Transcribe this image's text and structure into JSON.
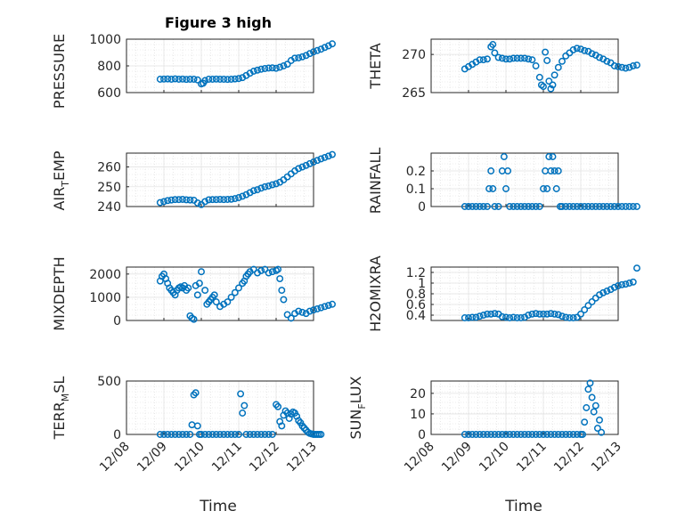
{
  "figure": {
    "title": "Figure 3 high",
    "marker_color": "#0072BD",
    "time_ticks": [
      "12/08",
      "12/09",
      "12/10",
      "12/11",
      "12/12",
      "12/13"
    ]
  },
  "chart_data": [
    {
      "type": "scatter",
      "name": "pressure",
      "title": "Figure 3 high",
      "xlabel": "",
      "ylabel": "PRESSURE",
      "ylim": [
        600,
        1000
      ],
      "yticks": [
        "600",
        "800",
        "1000"
      ],
      "grid": true,
      "x": [
        0.9,
        1.0,
        1.1,
        1.2,
        1.3,
        1.4,
        1.5,
        1.6,
        1.7,
        1.8,
        1.9,
        2.0,
        2.05,
        2.1,
        2.2,
        2.3,
        2.4,
        2.5,
        2.6,
        2.7,
        2.8,
        2.9,
        3.0,
        3.1,
        3.2,
        3.3,
        3.4,
        3.5,
        3.6,
        3.7,
        3.8,
        3.9,
        4.0,
        4.1,
        4.2,
        4.3,
        4.4,
        4.5,
        4.6,
        4.7,
        4.8,
        4.9,
        5.0,
        5.1,
        5.2,
        5.3,
        5.4,
        5.5
      ],
      "y": [
        700,
        701,
        702,
        700,
        703,
        700,
        701,
        699,
        700,
        700,
        695,
        665,
        670,
        690,
        700,
        700,
        701,
        700,
        700,
        699,
        700,
        702,
        705,
        712,
        728,
        745,
        760,
        768,
        775,
        780,
        784,
        785,
        782,
        790,
        800,
        812,
        840,
        858,
        860,
        868,
        878,
        892,
        905,
        915,
        925,
        938,
        950,
        965
      ]
    },
    {
      "type": "scatter",
      "name": "theta",
      "xlabel": "",
      "ylabel": "THETA",
      "ylim": [
        265,
        272
      ],
      "yticks": [
        "265",
        "270"
      ],
      "grid": true,
      "x": [
        0.9,
        1.0,
        1.1,
        1.2,
        1.3,
        1.4,
        1.5,
        1.6,
        1.65,
        1.7,
        1.8,
        1.9,
        2.0,
        2.1,
        2.2,
        2.3,
        2.4,
        2.5,
        2.6,
        2.7,
        2.8,
        2.9,
        2.95,
        3.0,
        3.05,
        3.1,
        3.15,
        3.2,
        3.25,
        3.3,
        3.4,
        3.5,
        3.6,
        3.7,
        3.8,
        3.9,
        4.0,
        4.1,
        4.2,
        4.3,
        4.4,
        4.5,
        4.6,
        4.7,
        4.8,
        4.9,
        5.0,
        5.1,
        5.2,
        5.3,
        5.4,
        5.5
      ],
      "y": [
        268.1,
        268.4,
        268.7,
        269.0,
        269.3,
        269.3,
        269.4,
        271.0,
        271.3,
        270.2,
        269.6,
        269.5,
        269.4,
        269.4,
        269.5,
        269.5,
        269.5,
        269.5,
        269.4,
        269.3,
        268.5,
        267.0,
        266.0,
        265.8,
        270.3,
        269.2,
        266.5,
        265.5,
        266.0,
        267.3,
        268.3,
        269.1,
        269.8,
        270.2,
        270.6,
        270.8,
        270.7,
        270.5,
        270.4,
        270.1,
        269.9,
        269.6,
        269.4,
        269.1,
        268.9,
        268.5,
        268.4,
        268.3,
        268.2,
        268.3,
        268.5,
        268.6
      ]
    },
    {
      "type": "scatter",
      "name": "air_temp",
      "xlabel": "",
      "ylabel": "AIR_TEMP",
      "ylim": [
        240,
        267
      ],
      "yticks": [
        "240",
        "250",
        "260"
      ],
      "grid": true,
      "x": [
        0.9,
        1.0,
        1.1,
        1.2,
        1.3,
        1.4,
        1.5,
        1.6,
        1.7,
        1.8,
        1.9,
        2.0,
        2.1,
        2.2,
        2.3,
        2.4,
        2.5,
        2.6,
        2.7,
        2.8,
        2.9,
        3.0,
        3.1,
        3.2,
        3.3,
        3.4,
        3.5,
        3.6,
        3.7,
        3.8,
        3.9,
        4.0,
        4.1,
        4.2,
        4.3,
        4.4,
        4.5,
        4.6,
        4.7,
        4.8,
        4.9,
        5.0,
        5.1,
        5.2,
        5.3,
        5.4,
        5.5
      ],
      "y": [
        242,
        242.5,
        243,
        243.3,
        243.5,
        243.5,
        243.6,
        243.4,
        243.3,
        243.2,
        241.8,
        241,
        242.5,
        243.4,
        243.5,
        243.5,
        243.6,
        243.5,
        243.6,
        243.7,
        244,
        244.5,
        245.2,
        246,
        247,
        248,
        248.5,
        249.3,
        250,
        250.4,
        251,
        251.5,
        252.3,
        253.5,
        255,
        256.5,
        258,
        259.2,
        260,
        260.8,
        261.7,
        262.5,
        263.3,
        264.1,
        264.8,
        265.5,
        266.3
      ]
    },
    {
      "type": "scatter",
      "name": "rainfall",
      "xlabel": "",
      "ylabel": "RAINFALL",
      "ylim": [
        0,
        0.3
      ],
      "yticks": [
        "0",
        "0.1",
        "0.2"
      ],
      "grid": true,
      "x": [
        0.9,
        1.0,
        1.1,
        1.2,
        1.3,
        1.4,
        1.5,
        1.55,
        1.6,
        1.65,
        1.7,
        1.8,
        1.9,
        1.95,
        2.0,
        2.05,
        2.1,
        2.2,
        2.3,
        2.4,
        2.5,
        2.6,
        2.7,
        2.8,
        2.9,
        3.0,
        3.05,
        3.1,
        3.15,
        3.2,
        3.25,
        3.3,
        3.35,
        3.4,
        3.45,
        3.5,
        3.6,
        3.7,
        3.8,
        3.9,
        4.0,
        4.1,
        4.2,
        4.3,
        4.4,
        4.5,
        4.6,
        4.7,
        4.8,
        4.9,
        5.0,
        5.1,
        5.2,
        5.3,
        5.4,
        5.5
      ],
      "y": [
        0,
        0,
        0,
        0,
        0,
        0,
        0,
        0.1,
        0.2,
        0.1,
        0,
        0,
        0.2,
        0.28,
        0.1,
        0.2,
        0,
        0,
        0,
        0,
        0,
        0,
        0,
        0,
        0,
        0.1,
        0.2,
        0.1,
        0.28,
        0.2,
        0.28,
        0.2,
        0.1,
        0.2,
        0,
        0,
        0,
        0,
        0,
        0,
        0,
        0,
        0,
        0,
        0,
        0,
        0,
        0,
        0,
        0,
        0,
        0,
        0,
        0,
        0,
        0
      ]
    },
    {
      "type": "scatter",
      "name": "mixdepth",
      "xlabel": "",
      "ylabel": "MIXDEPTH",
      "ylim": [
        0,
        2300
      ],
      "yticks": [
        "0",
        "1000",
        "2000"
      ],
      "grid": true,
      "x": [
        0.9,
        0.95,
        1.0,
        1.05,
        1.1,
        1.15,
        1.2,
        1.25,
        1.3,
        1.35,
        1.4,
        1.45,
        1.5,
        1.55,
        1.6,
        1.65,
        1.7,
        1.75,
        1.8,
        1.85,
        1.9,
        1.95,
        2.0,
        2.1,
        2.15,
        2.2,
        2.25,
        2.3,
        2.35,
        2.4,
        2.5,
        2.6,
        2.7,
        2.8,
        2.9,
        3.0,
        3.1,
        3.15,
        3.2,
        3.25,
        3.3,
        3.4,
        3.5,
        3.6,
        3.7,
        3.8,
        3.9,
        4.0,
        4.05,
        4.1,
        4.15,
        4.2,
        4.3,
        4.4,
        4.5,
        4.6,
        4.7,
        4.8,
        4.9,
        5.0,
        5.1,
        5.2,
        5.3,
        5.4,
        5.5
      ],
      "y": [
        1700,
        1900,
        2000,
        1800,
        1600,
        1400,
        1300,
        1200,
        1100,
        1300,
        1400,
        1450,
        1400,
        1500,
        1300,
        1400,
        200,
        100,
        50,
        1500,
        1100,
        1600,
        2100,
        1300,
        700,
        800,
        900,
        1000,
        1100,
        800,
        600,
        700,
        800,
        1000,
        1200,
        1400,
        1600,
        1700,
        1900,
        2000,
        2100,
        2200,
        2050,
        2150,
        2200,
        2050,
        2100,
        2150,
        2200,
        1800,
        1300,
        900,
        250,
        100,
        300,
        400,
        350,
        300,
        400,
        450,
        500,
        550,
        600,
        650,
        700
      ]
    },
    {
      "type": "scatter",
      "name": "h2omixra",
      "xlabel": "",
      "ylabel": "H2OMIXRA",
      "ylim": [
        0.3,
        1.3
      ],
      "yticks": [
        "0.4",
        "0.6",
        "0.8",
        "1",
        "1.2"
      ],
      "grid": true,
      "x": [
        0.9,
        1.0,
        1.1,
        1.2,
        1.3,
        1.4,
        1.5,
        1.6,
        1.7,
        1.8,
        1.9,
        2.0,
        2.1,
        2.2,
        2.3,
        2.4,
        2.5,
        2.6,
        2.7,
        2.8,
        2.9,
        3.0,
        3.1,
        3.2,
        3.3,
        3.4,
        3.5,
        3.6,
        3.7,
        3.8,
        3.9,
        4.0,
        4.1,
        4.2,
        4.3,
        4.4,
        4.5,
        4.6,
        4.7,
        4.8,
        4.9,
        5.0,
        5.1,
        5.2,
        5.3,
        5.4,
        5.5
      ],
      "y": [
        0.35,
        0.35,
        0.36,
        0.36,
        0.38,
        0.4,
        0.42,
        0.42,
        0.43,
        0.42,
        0.37,
        0.36,
        0.35,
        0.36,
        0.35,
        0.35,
        0.36,
        0.4,
        0.42,
        0.43,
        0.42,
        0.42,
        0.42,
        0.43,
        0.42,
        0.41,
        0.38,
        0.36,
        0.35,
        0.35,
        0.36,
        0.42,
        0.5,
        0.58,
        0.65,
        0.72,
        0.78,
        0.82,
        0.85,
        0.88,
        0.92,
        0.95,
        0.97,
        0.98,
        1.0,
        1.02,
        1.28
      ]
    },
    {
      "type": "scatter",
      "name": "terr_msl",
      "xlabel": "Time",
      "ylabel": "TERR_MSL",
      "ylim": [
        0,
        500
      ],
      "yticks": [
        "0",
        "500"
      ],
      "grid": true,
      "xticks": [
        "12/08",
        "12/09",
        "12/10",
        "12/11",
        "12/12",
        "12/13"
      ],
      "x": [
        0.9,
        1.0,
        1.1,
        1.2,
        1.3,
        1.4,
        1.5,
        1.6,
        1.7,
        1.75,
        1.8,
        1.85,
        1.9,
        1.95,
        2.0,
        2.1,
        2.2,
        2.3,
        2.4,
        2.5,
        2.6,
        2.7,
        2.8,
        2.9,
        3.0,
        3.05,
        3.1,
        3.15,
        3.2,
        3.3,
        3.4,
        3.5,
        3.6,
        3.7,
        3.8,
        3.9,
        4.0,
        4.05,
        4.1,
        4.15,
        4.2,
        4.25,
        4.3,
        4.35,
        4.4,
        4.45,
        4.5,
        4.55,
        4.6,
        4.65,
        4.7,
        4.75,
        4.8,
        4.85,
        4.9,
        4.95,
        5.0,
        5.05,
        5.1,
        5.15,
        5.2
      ],
      "y": [
        0,
        0,
        0,
        0,
        0,
        0,
        0,
        0,
        0,
        90,
        370,
        390,
        80,
        0,
        0,
        0,
        0,
        0,
        0,
        0,
        0,
        0,
        0,
        0,
        0,
        380,
        200,
        270,
        0,
        0,
        0,
        0,
        0,
        0,
        0,
        0,
        280,
        260,
        120,
        80,
        180,
        220,
        200,
        150,
        190,
        210,
        200,
        170,
        130,
        110,
        80,
        60,
        40,
        20,
        10,
        5,
        0,
        0,
        0,
        0,
        0
      ]
    },
    {
      "type": "scatter",
      "name": "sun_flux",
      "xlabel": "Time",
      "ylabel": "SUN_FLUX",
      "ylim": [
        0,
        26
      ],
      "yticks": [
        "0",
        "10",
        "20"
      ],
      "grid": true,
      "xticks": [
        "12/08",
        "12/09",
        "12/10",
        "12/11",
        "12/12",
        "12/13"
      ],
      "x": [
        0.9,
        1.0,
        1.1,
        1.2,
        1.3,
        1.4,
        1.5,
        1.6,
        1.7,
        1.8,
        1.9,
        2.0,
        2.1,
        2.2,
        2.3,
        2.4,
        2.5,
        2.6,
        2.7,
        2.8,
        2.9,
        3.0,
        3.1,
        3.2,
        3.3,
        3.4,
        3.5,
        3.6,
        3.7,
        3.8,
        3.9,
        4.0,
        4.05,
        4.1,
        4.15,
        4.2,
        4.25,
        4.3,
        4.35,
        4.4,
        4.45,
        4.5,
        4.55
      ],
      "y": [
        0,
        0,
        0,
        0,
        0,
        0,
        0,
        0,
        0,
        0,
        0,
        0,
        0,
        0,
        0,
        0,
        0,
        0,
        0,
        0,
        0,
        0,
        0,
        0,
        0,
        0,
        0,
        0,
        0,
        0,
        0,
        0,
        0,
        6,
        13,
        22,
        25,
        18,
        11,
        14,
        3,
        7,
        1
      ]
    }
  ],
  "panels": {
    "pressure": {
      "ylabel": "PRESSURE"
    },
    "theta": {
      "ylabel": "THETA"
    },
    "air_temp": {
      "ylabel_main": "AIR",
      "ylabel_sub": "T",
      "ylabel_rest": "EMP"
    },
    "rainfall": {
      "ylabel": "RAINFALL"
    },
    "mixdepth": {
      "ylabel": "MIXDEPTH"
    },
    "h2omixra": {
      "ylabel": "H2OMIXRA"
    },
    "terr_msl": {
      "ylabel_main": "TERR",
      "ylabel_sub": "M",
      "ylabel_rest": "SL"
    },
    "sun_flux": {
      "ylabel_main": "SUN",
      "ylabel_sub": "F",
      "ylabel_rest": "LUX"
    },
    "xlabel": "Time"
  }
}
